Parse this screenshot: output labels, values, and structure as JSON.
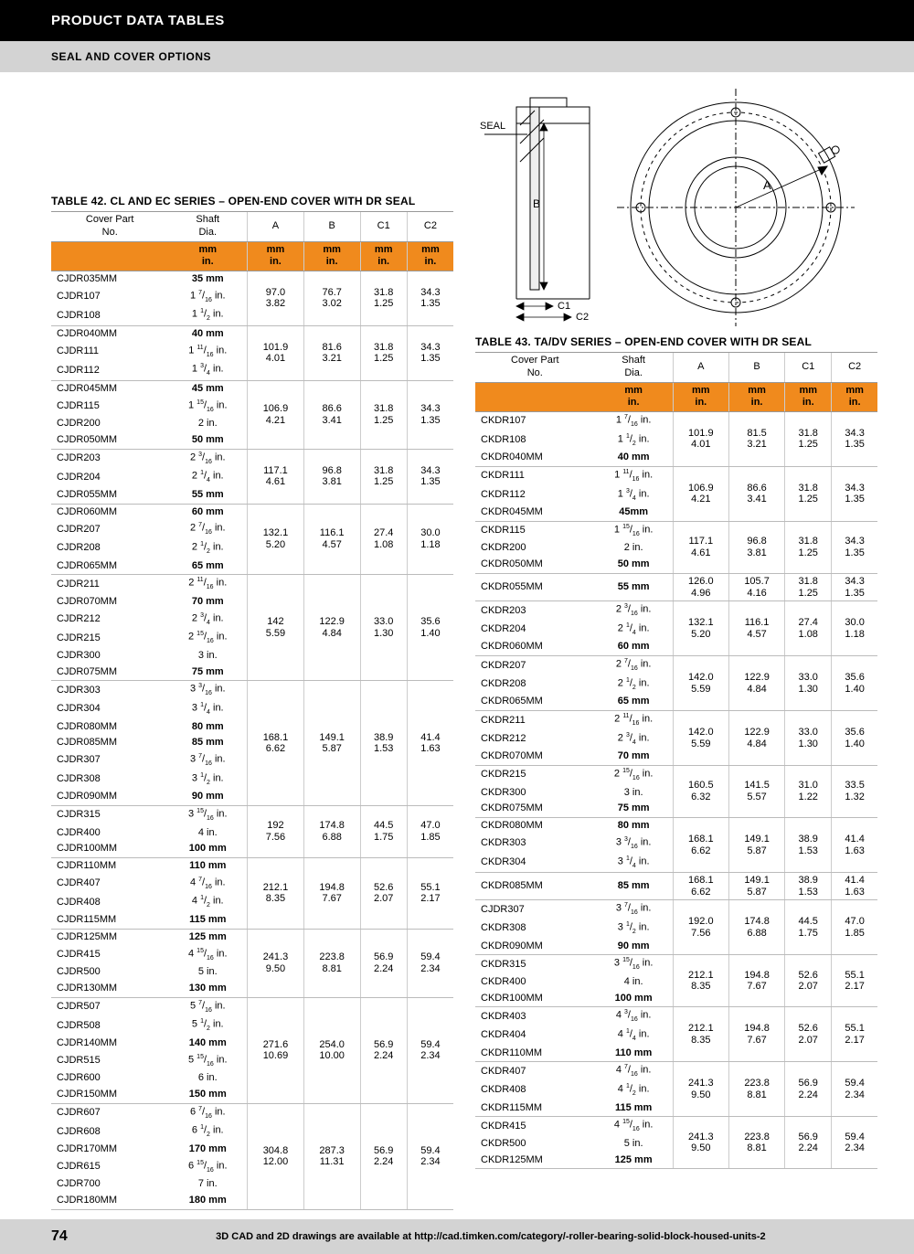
{
  "header": {
    "title": "PRODUCT DATA TABLES",
    "subtitle": "SEAL AND COVER OPTIONS"
  },
  "diagram": {
    "seal_label": "SEAL",
    "A": "A",
    "B": "B",
    "C1": "C1",
    "C2": "C2"
  },
  "table42": {
    "title": "TABLE 42. CL AND EC SERIES – OPEN-END COVER WITH DR SEAL",
    "cols": [
      "Cover Part\nNo.",
      "Shaft\nDia.",
      "A",
      "B",
      "C1",
      "C2"
    ],
    "unit_top": "mm",
    "unit_bot": "in.",
    "groups": [
      {
        "rows": [
          [
            "CJDR035MM",
            "35 mm",
            true
          ],
          [
            "CJDR107",
            "1 7/16 in.",
            false
          ],
          [
            "CJDR108",
            "1 1/2 in.",
            false
          ]
        ],
        "A": [
          "97.0",
          "3.82"
        ],
        "B": [
          "76.7",
          "3.02"
        ],
        "C1": [
          "31.8",
          "1.25"
        ],
        "C2": [
          "34.3",
          "1.35"
        ]
      },
      {
        "rows": [
          [
            "CJDR040MM",
            "40 mm",
            true
          ],
          [
            "CJDR111",
            "1 11/16 in.",
            false
          ],
          [
            "CJDR112",
            "1 3/4 in.",
            false
          ]
        ],
        "A": [
          "101.9",
          "4.01"
        ],
        "B": [
          "81.6",
          "3.21"
        ],
        "C1": [
          "31.8",
          "1.25"
        ],
        "C2": [
          "34.3",
          "1.35"
        ]
      },
      {
        "rows": [
          [
            "CJDR045MM",
            "45 mm",
            true
          ],
          [
            "CJDR115",
            "1 15/16 in.",
            false
          ],
          [
            "CJDR200",
            "2 in.",
            false
          ],
          [
            "CJDR050MM",
            "50 mm",
            true
          ]
        ],
        "A": [
          "106.9",
          "4.21"
        ],
        "B": [
          "86.6",
          "3.41"
        ],
        "C1": [
          "31.8",
          "1.25"
        ],
        "C2": [
          "34.3",
          "1.35"
        ]
      },
      {
        "rows": [
          [
            "CJDR203",
            "2 3/16 in.",
            false
          ],
          [
            "CJDR204",
            "2 1/4 in.",
            false
          ],
          [
            "CJDR055MM",
            "55 mm",
            true
          ]
        ],
        "A": [
          "117.1",
          "4.61"
        ],
        "B": [
          "96.8",
          "3.81"
        ],
        "C1": [
          "31.8",
          "1.25"
        ],
        "C2": [
          "34.3",
          "1.35"
        ]
      },
      {
        "rows": [
          [
            "CJDR060MM",
            "60 mm",
            true
          ],
          [
            "CJDR207",
            "2 7/16 in.",
            false
          ],
          [
            "CJDR208",
            "2 1/2 in.",
            false
          ],
          [
            "CJDR065MM",
            "65 mm",
            true
          ]
        ],
        "A": [
          "132.1",
          "5.20"
        ],
        "B": [
          "116.1",
          "4.57"
        ],
        "C1": [
          "27.4",
          "1.08"
        ],
        "C2": [
          "30.0",
          "1.18"
        ]
      },
      {
        "rows": [
          [
            "CJDR211",
            "2 11/16 in.",
            false
          ],
          [
            "CJDR070MM",
            "70 mm",
            true
          ],
          [
            "CJDR212",
            "2 3/4 in.",
            false
          ],
          [
            "CJDR215",
            "2 15/16 in.",
            false
          ],
          [
            "CJDR300",
            "3 in.",
            false
          ],
          [
            "CJDR075MM",
            "75 mm",
            true
          ]
        ],
        "A": [
          "142",
          "5.59"
        ],
        "B": [
          "122.9",
          "4.84"
        ],
        "C1": [
          "33.0",
          "1.30"
        ],
        "C2": [
          "35.6",
          "1.40"
        ]
      },
      {
        "rows": [
          [
            "CJDR303",
            "3 3/16 in.",
            false
          ],
          [
            "CJDR304",
            "3 1/4 in.",
            false
          ],
          [
            "CJDR080MM",
            "80 mm",
            true
          ],
          [
            "CJDR085MM",
            "85 mm",
            true
          ],
          [
            "CJDR307",
            "3 7/16 in.",
            false
          ],
          [
            "CJDR308",
            "3 1/2 in.",
            false
          ],
          [
            "CJDR090MM",
            "90 mm",
            true
          ]
        ],
        "A": [
          "168.1",
          "6.62"
        ],
        "B": [
          "149.1",
          "5.87"
        ],
        "C1": [
          "38.9",
          "1.53"
        ],
        "C2": [
          "41.4",
          "1.63"
        ]
      },
      {
        "rows": [
          [
            "CJDR315",
            "3 15/16 in.",
            false
          ],
          [
            "CJDR400",
            "4 in.",
            false
          ],
          [
            "CJDR100MM",
            "100 mm",
            true
          ]
        ],
        "A": [
          "192",
          "7.56"
        ],
        "B": [
          "174.8",
          "6.88"
        ],
        "C1": [
          "44.5",
          "1.75"
        ],
        "C2": [
          "47.0",
          "1.85"
        ]
      },
      {
        "rows": [
          [
            "CJDR110MM",
            "110 mm",
            true
          ],
          [
            "CJDR407",
            "4 7/16 in.",
            false
          ],
          [
            "CJDR408",
            "4 1/2 in.",
            false
          ],
          [
            "CJDR115MM",
            "115 mm",
            true
          ]
        ],
        "A": [
          "212.1",
          "8.35"
        ],
        "B": [
          "194.8",
          "7.67"
        ],
        "C1": [
          "52.6",
          "2.07"
        ],
        "C2": [
          "55.1",
          "2.17"
        ]
      },
      {
        "rows": [
          [
            "CJDR125MM",
            "125 mm",
            true
          ],
          [
            "CJDR415",
            "4 15/16 in.",
            false
          ],
          [
            "CJDR500",
            "5 in.",
            false
          ],
          [
            "CJDR130MM",
            "130 mm",
            true
          ]
        ],
        "A": [
          "241.3",
          "9.50"
        ],
        "B": [
          "223.8",
          "8.81"
        ],
        "C1": [
          "56.9",
          "2.24"
        ],
        "C2": [
          "59.4",
          "2.34"
        ]
      },
      {
        "rows": [
          [
            "CJDR507",
            "5 7/16 in.",
            false
          ],
          [
            "CJDR508",
            "5 1/2 in.",
            false
          ],
          [
            "CJDR140MM",
            "140 mm",
            true
          ],
          [
            "CJDR515",
            "5 15/16 in.",
            false
          ],
          [
            "CJDR600",
            "6 in.",
            false
          ],
          [
            "CJDR150MM",
            "150 mm",
            true
          ]
        ],
        "A": [
          "271.6",
          "10.69"
        ],
        "B": [
          "254.0",
          "10.00"
        ],
        "C1": [
          "56.9",
          "2.24"
        ],
        "C2": [
          "59.4",
          "2.34"
        ]
      },
      {
        "rows": [
          [
            "CJDR607",
            "6 7/16 in.",
            false
          ],
          [
            "CJDR608",
            "6 1/2 in.",
            false
          ],
          [
            "CJDR170MM",
            "170 mm",
            true
          ],
          [
            "CJDR615",
            "6 15/16 in.",
            false
          ],
          [
            "CJDR700",
            "7 in.",
            false
          ],
          [
            "CJDR180MM",
            "180 mm",
            true
          ]
        ],
        "A": [
          "304.8",
          "12.00"
        ],
        "B": [
          "287.3",
          "11.31"
        ],
        "C1": [
          "56.9",
          "2.24"
        ],
        "C2": [
          "59.4",
          "2.34"
        ]
      }
    ]
  },
  "table43": {
    "title": "TABLE 43. TA/DV SERIES – OPEN-END COVER WITH DR SEAL",
    "cols": [
      "Cover Part\nNo.",
      "Shaft\nDia.",
      "A",
      "B",
      "C1",
      "C2"
    ],
    "unit_top": "mm",
    "unit_bot": "in.",
    "groups": [
      {
        "rows": [
          [
            "CKDR107",
            "1 7/16 in.",
            false
          ],
          [
            "CKDR108",
            "1 1/2 in.",
            false
          ],
          [
            "CKDR040MM",
            "40 mm",
            true
          ]
        ],
        "A": [
          "101.9",
          "4.01"
        ],
        "B": [
          "81.5",
          "3.21"
        ],
        "C1": [
          "31.8",
          "1.25"
        ],
        "C2": [
          "34.3",
          "1.35"
        ]
      },
      {
        "rows": [
          [
            "CKDR111",
            "1 11/16 in.",
            false
          ],
          [
            "CKDR112",
            "1 3/4 in.",
            false
          ],
          [
            "CKDR045MM",
            "45mm",
            true
          ]
        ],
        "A": [
          "106.9",
          "4.21"
        ],
        "B": [
          "86.6",
          "3.41"
        ],
        "C1": [
          "31.8",
          "1.25"
        ],
        "C2": [
          "34.3",
          "1.35"
        ]
      },
      {
        "rows": [
          [
            "CKDR115",
            "1 15/16 in.",
            false
          ],
          [
            "CKDR200",
            "2 in.",
            false
          ],
          [
            "CKDR050MM",
            "50 mm",
            true
          ]
        ],
        "A": [
          "117.1",
          "4.61"
        ],
        "B": [
          "96.8",
          "3.81"
        ],
        "C1": [
          "31.8",
          "1.25"
        ],
        "C2": [
          "34.3",
          "1.35"
        ]
      },
      {
        "rows": [
          [
            "CKDR055MM",
            "55 mm",
            true
          ]
        ],
        "A": [
          "126.0",
          "4.96"
        ],
        "B": [
          "105.7",
          "4.16"
        ],
        "C1": [
          "31.8",
          "1.25"
        ],
        "C2": [
          "34.3",
          "1.35"
        ]
      },
      {
        "rows": [
          [
            "CKDR203",
            "2 3/16 in.",
            false
          ],
          [
            "CKDR204",
            "2 1/4 in.",
            false
          ],
          [
            "CKDR060MM",
            "60 mm",
            true
          ]
        ],
        "A": [
          "132.1",
          "5.20"
        ],
        "B": [
          "116.1",
          "4.57"
        ],
        "C1": [
          "27.4",
          "1.08"
        ],
        "C2": [
          "30.0",
          "1.18"
        ]
      },
      {
        "rows": [
          [
            "CKDR207",
            "2 7/16 in.",
            false
          ],
          [
            "CKDR208",
            "2 1/2 in.",
            false
          ],
          [
            "CKDR065MM",
            "65 mm",
            true
          ]
        ],
        "A": [
          "142.0",
          "5.59"
        ],
        "B": [
          "122.9",
          "4.84"
        ],
        "C1": [
          "33.0",
          "1.30"
        ],
        "C2": [
          "35.6",
          "1.40"
        ]
      },
      {
        "rows": [
          [
            "CKDR211",
            "2 11/16 in.",
            false
          ],
          [
            "CKDR212",
            "2 3/4 in.",
            false
          ],
          [
            "CKDR070MM",
            "70 mm",
            true
          ]
        ],
        "A": [
          "142.0",
          "5.59"
        ],
        "B": [
          "122.9",
          "4.84"
        ],
        "C1": [
          "33.0",
          "1.30"
        ],
        "C2": [
          "35.6",
          "1.40"
        ]
      },
      {
        "rows": [
          [
            "CKDR215",
            "2 15/16 in.",
            false
          ],
          [
            "CKDR300",
            "3 in.",
            false
          ],
          [
            "CKDR075MM",
            "75 mm",
            true
          ]
        ],
        "A": [
          "160.5",
          "6.32"
        ],
        "B": [
          "141.5",
          "5.57"
        ],
        "C1": [
          "31.0",
          "1.22"
        ],
        "C2": [
          "33.5",
          "1.32"
        ]
      },
      {
        "rows": [
          [
            "CKDR080MM",
            "80 mm",
            true
          ],
          [
            "CKDR303",
            "3 3/16 in.",
            false
          ],
          [
            "CKDR304",
            "3 1/4 in.",
            false
          ]
        ],
        "A": [
          "168.1",
          "6.62"
        ],
        "B": [
          "149.1",
          "5.87"
        ],
        "C1": [
          "38.9",
          "1.53"
        ],
        "C2": [
          "41.4",
          "1.63"
        ]
      },
      {
        "rows": [
          [
            "CKDR085MM",
            "85 mm",
            true
          ]
        ],
        "A": [
          "168.1",
          "6.62"
        ],
        "B": [
          "149.1",
          "5.87"
        ],
        "C1": [
          "38.9",
          "1.53"
        ],
        "C2": [
          "41.4",
          "1.63"
        ]
      },
      {
        "rows": [
          [
            "CJDR307",
            "3 7/16 in.",
            false
          ],
          [
            "CKDR308",
            "3 1/2 in.",
            false
          ],
          [
            "CKDR090MM",
            "90 mm",
            true
          ]
        ],
        "A": [
          "192.0",
          "7.56"
        ],
        "B": [
          "174.8",
          "6.88"
        ],
        "C1": [
          "44.5",
          "1.75"
        ],
        "C2": [
          "47.0",
          "1.85"
        ]
      },
      {
        "rows": [
          [
            "CKDR315",
            "3 15/16 in.",
            false
          ],
          [
            "CKDR400",
            "4 in.",
            false
          ],
          [
            "CKDR100MM",
            "100 mm",
            true
          ]
        ],
        "A": [
          "212.1",
          "8.35"
        ],
        "B": [
          "194.8",
          "7.67"
        ],
        "C1": [
          "52.6",
          "2.07"
        ],
        "C2": [
          "55.1",
          "2.17"
        ]
      },
      {
        "rows": [
          [
            "CKDR403",
            "4 3/16 in.",
            false
          ],
          [
            "CKDR404",
            "4 1/4 in.",
            false
          ],
          [
            "CKDR110MM",
            "110 mm",
            true
          ]
        ],
        "A": [
          "212.1",
          "8.35"
        ],
        "B": [
          "194.8",
          "7.67"
        ],
        "C1": [
          "52.6",
          "2.07"
        ],
        "C2": [
          "55.1",
          "2.17"
        ]
      },
      {
        "rows": [
          [
            "CKDR407",
            "4 7/16 in.",
            false
          ],
          [
            "CKDR408",
            "4 1/2 in.",
            false
          ],
          [
            "CKDR115MM",
            "115 mm",
            true
          ]
        ],
        "A": [
          "241.3",
          "9.50"
        ],
        "B": [
          "223.8",
          "8.81"
        ],
        "C1": [
          "56.9",
          "2.24"
        ],
        "C2": [
          "59.4",
          "2.34"
        ]
      },
      {
        "rows": [
          [
            "CKDR415",
            "4 15/16 in.",
            false
          ],
          [
            "CKDR500",
            "5 in.",
            false
          ],
          [
            "CKDR125MM",
            "125 mm",
            true
          ]
        ],
        "A": [
          "241.3",
          "9.50"
        ],
        "B": [
          "223.8",
          "8.81"
        ],
        "C1": [
          "56.9",
          "2.24"
        ],
        "C2": [
          "59.4",
          "2.34"
        ]
      }
    ]
  },
  "footer": {
    "page": "74",
    "text": "3D CAD and 2D drawings are available at http://cad.timken.com/category/-roller-bearing-solid-block-housed-units-2"
  }
}
